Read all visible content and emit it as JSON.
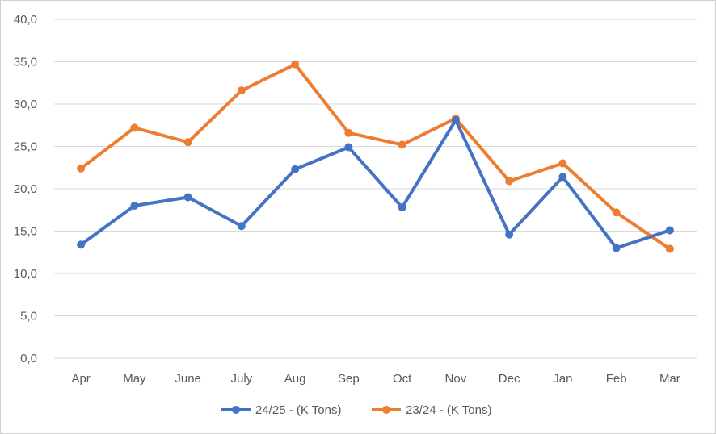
{
  "chart_data": {
    "type": "line",
    "title": "",
    "xlabel": "",
    "ylabel": "",
    "categories": [
      "Apr",
      "May",
      "June",
      "July",
      "Aug",
      "Sep",
      "Oct",
      "Nov",
      "Dec",
      "Jan",
      "Feb",
      "Mar"
    ],
    "y_ticks": [
      "0,0",
      "5,0",
      "10,0",
      "15,0",
      "20,0",
      "25,0",
      "30,0",
      "35,0",
      "40,0"
    ],
    "ylim": [
      0,
      40
    ],
    "grid": true,
    "legend_position": "bottom",
    "series": [
      {
        "name": "24/25 - (K Tons)",
        "color": "#4472C4",
        "values": [
          13.4,
          18.0,
          19.0,
          15.6,
          22.3,
          24.9,
          17.8,
          28.1,
          14.6,
          21.4,
          13.0,
          15.1
        ]
      },
      {
        "name": "23/24 - (K Tons)",
        "color": "#ED7D31",
        "values": [
          22.4,
          27.2,
          25.5,
          31.6,
          34.7,
          26.6,
          25.2,
          28.3,
          20.9,
          23.0,
          17.2,
          12.9
        ]
      }
    ]
  }
}
